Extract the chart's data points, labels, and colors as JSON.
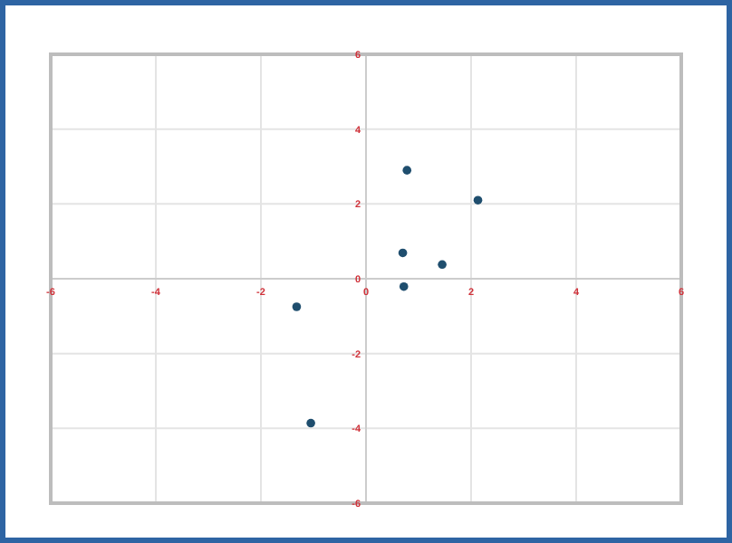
{
  "chart_data": {
    "type": "scatter",
    "x": [
      0.78,
      2.13,
      0.7,
      1.45,
      0.72,
      -1.32,
      -1.05
    ],
    "values": [
      2.9,
      2.1,
      0.69,
      0.38,
      -0.21,
      -0.75,
      -3.86
    ],
    "color": "#1f4e6e",
    "marker": "circle",
    "grid": true,
    "xlim": [
      -6,
      6
    ],
    "ylim": [
      -6,
      6
    ],
    "xticks": [
      -6,
      -4,
      -2,
      0,
      2,
      4,
      6
    ],
    "yticks": [
      -6,
      -4,
      -2,
      0,
      2,
      4,
      6
    ]
  }
}
